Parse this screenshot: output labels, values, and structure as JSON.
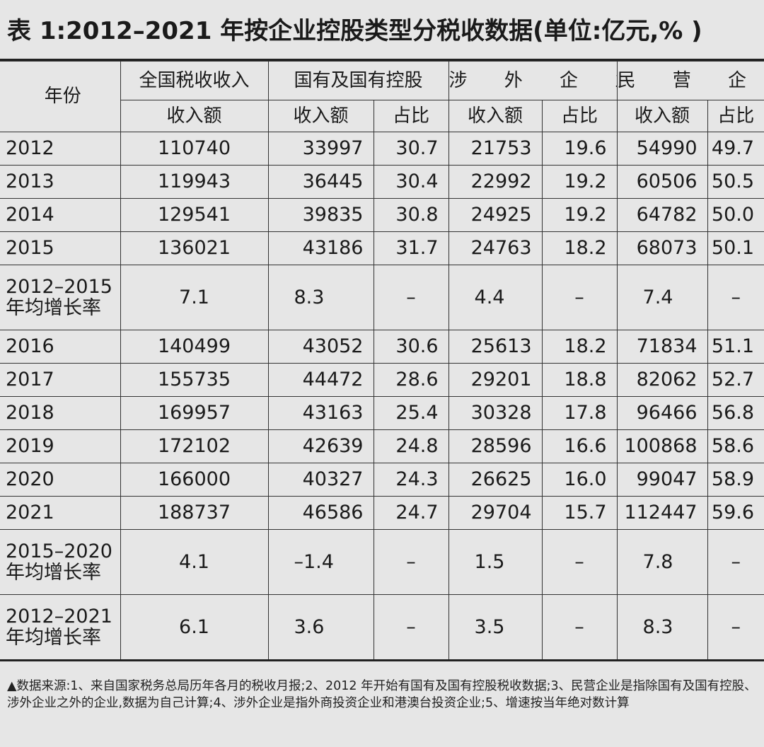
{
  "title": "表 1:2012–2021 年按企业控股类型分税收数据(单位:亿元,% )",
  "headers": {
    "year": "年份",
    "total": "全国税收收入",
    "state": "国有及国有控股",
    "foreign": "涉 外 企 业",
    "private": "民 营 企 业",
    "income": "收入额",
    "share": "占比"
  },
  "rows": [
    {
      "year": "2012",
      "total": "110740",
      "state": "33997",
      "state_share": "30.7",
      "foreign": "21753",
      "foreign_share": "19.6",
      "private": "54990",
      "private_share": "49.7"
    },
    {
      "year": "2013",
      "total": "119943",
      "state": "36445",
      "state_share": "30.4",
      "foreign": "22992",
      "foreign_share": "19.2",
      "private": "60506",
      "private_share": "50.5"
    },
    {
      "year": "2014",
      "total": "129541",
      "state": "39835",
      "state_share": "30.8",
      "foreign": "24925",
      "foreign_share": "19.2",
      "private": "64782",
      "private_share": "50.0"
    },
    {
      "year": "2015",
      "total": "136021",
      "state": "43186",
      "state_share": "31.7",
      "foreign": "24763",
      "foreign_share": "18.2",
      "private": "68073",
      "private_share": "50.1"
    },
    {
      "year": "2012–2015 年均增长率",
      "total": "7.1",
      "state": "8.3",
      "state_share": "–",
      "foreign": "4.4",
      "foreign_share": "–",
      "private": "7.4",
      "private_share": "–"
    },
    {
      "year": "2016",
      "total": "140499",
      "state": "43052",
      "state_share": "30.6",
      "foreign": "25613",
      "foreign_share": "18.2",
      "private": "71834",
      "private_share": "51.1"
    },
    {
      "year": "2017",
      "total": "155735",
      "state": "44472",
      "state_share": "28.6",
      "foreign": "29201",
      "foreign_share": "18.8",
      "private": "82062",
      "private_share": "52.7"
    },
    {
      "year": "2018",
      "total": "169957",
      "state": "43163",
      "state_share": "25.4",
      "foreign": "30328",
      "foreign_share": "17.8",
      "private": "96466",
      "private_share": "56.8"
    },
    {
      "year": "2019",
      "total": "172102",
      "state": "42639",
      "state_share": "24.8",
      "foreign": "28596",
      "foreign_share": "16.6",
      "private": "100868",
      "private_share": "58.6"
    },
    {
      "year": "2020",
      "total": "166000",
      "state": "40327",
      "state_share": "24.3",
      "foreign": "26625",
      "foreign_share": "16.0",
      "private": "99047",
      "private_share": "58.9"
    },
    {
      "year": "2021",
      "total": "188737",
      "state": "46586",
      "state_share": "24.7",
      "foreign": "29704",
      "foreign_share": "15.7",
      "private": "112447",
      "private_share": "59.6"
    },
    {
      "year": "2015–2020 年均增长率",
      "total": "4.1",
      "state": "–1.4",
      "state_share": "–",
      "foreign": "1.5",
      "foreign_share": "–",
      "private": "7.8",
      "private_share": "–"
    },
    {
      "year": "2012–2021 年均增长率",
      "total": "6.1",
      "state": "3.6",
      "state_share": "–",
      "foreign": "3.5",
      "foreign_share": "–",
      "private": "8.3",
      "private_share": "–"
    }
  ],
  "footnote": "▲数据来源:1、来自国家税务总局历年各月的税收月报;2、2012 年开始有国有及国有控股税收数据;3、民营企业是指除国有及国有控股、涉外企业之外的企业,数据为自己计算;4、涉外企业是指外商投资企业和港澳台投资企业;5、增速按当年绝对数计算"
}
